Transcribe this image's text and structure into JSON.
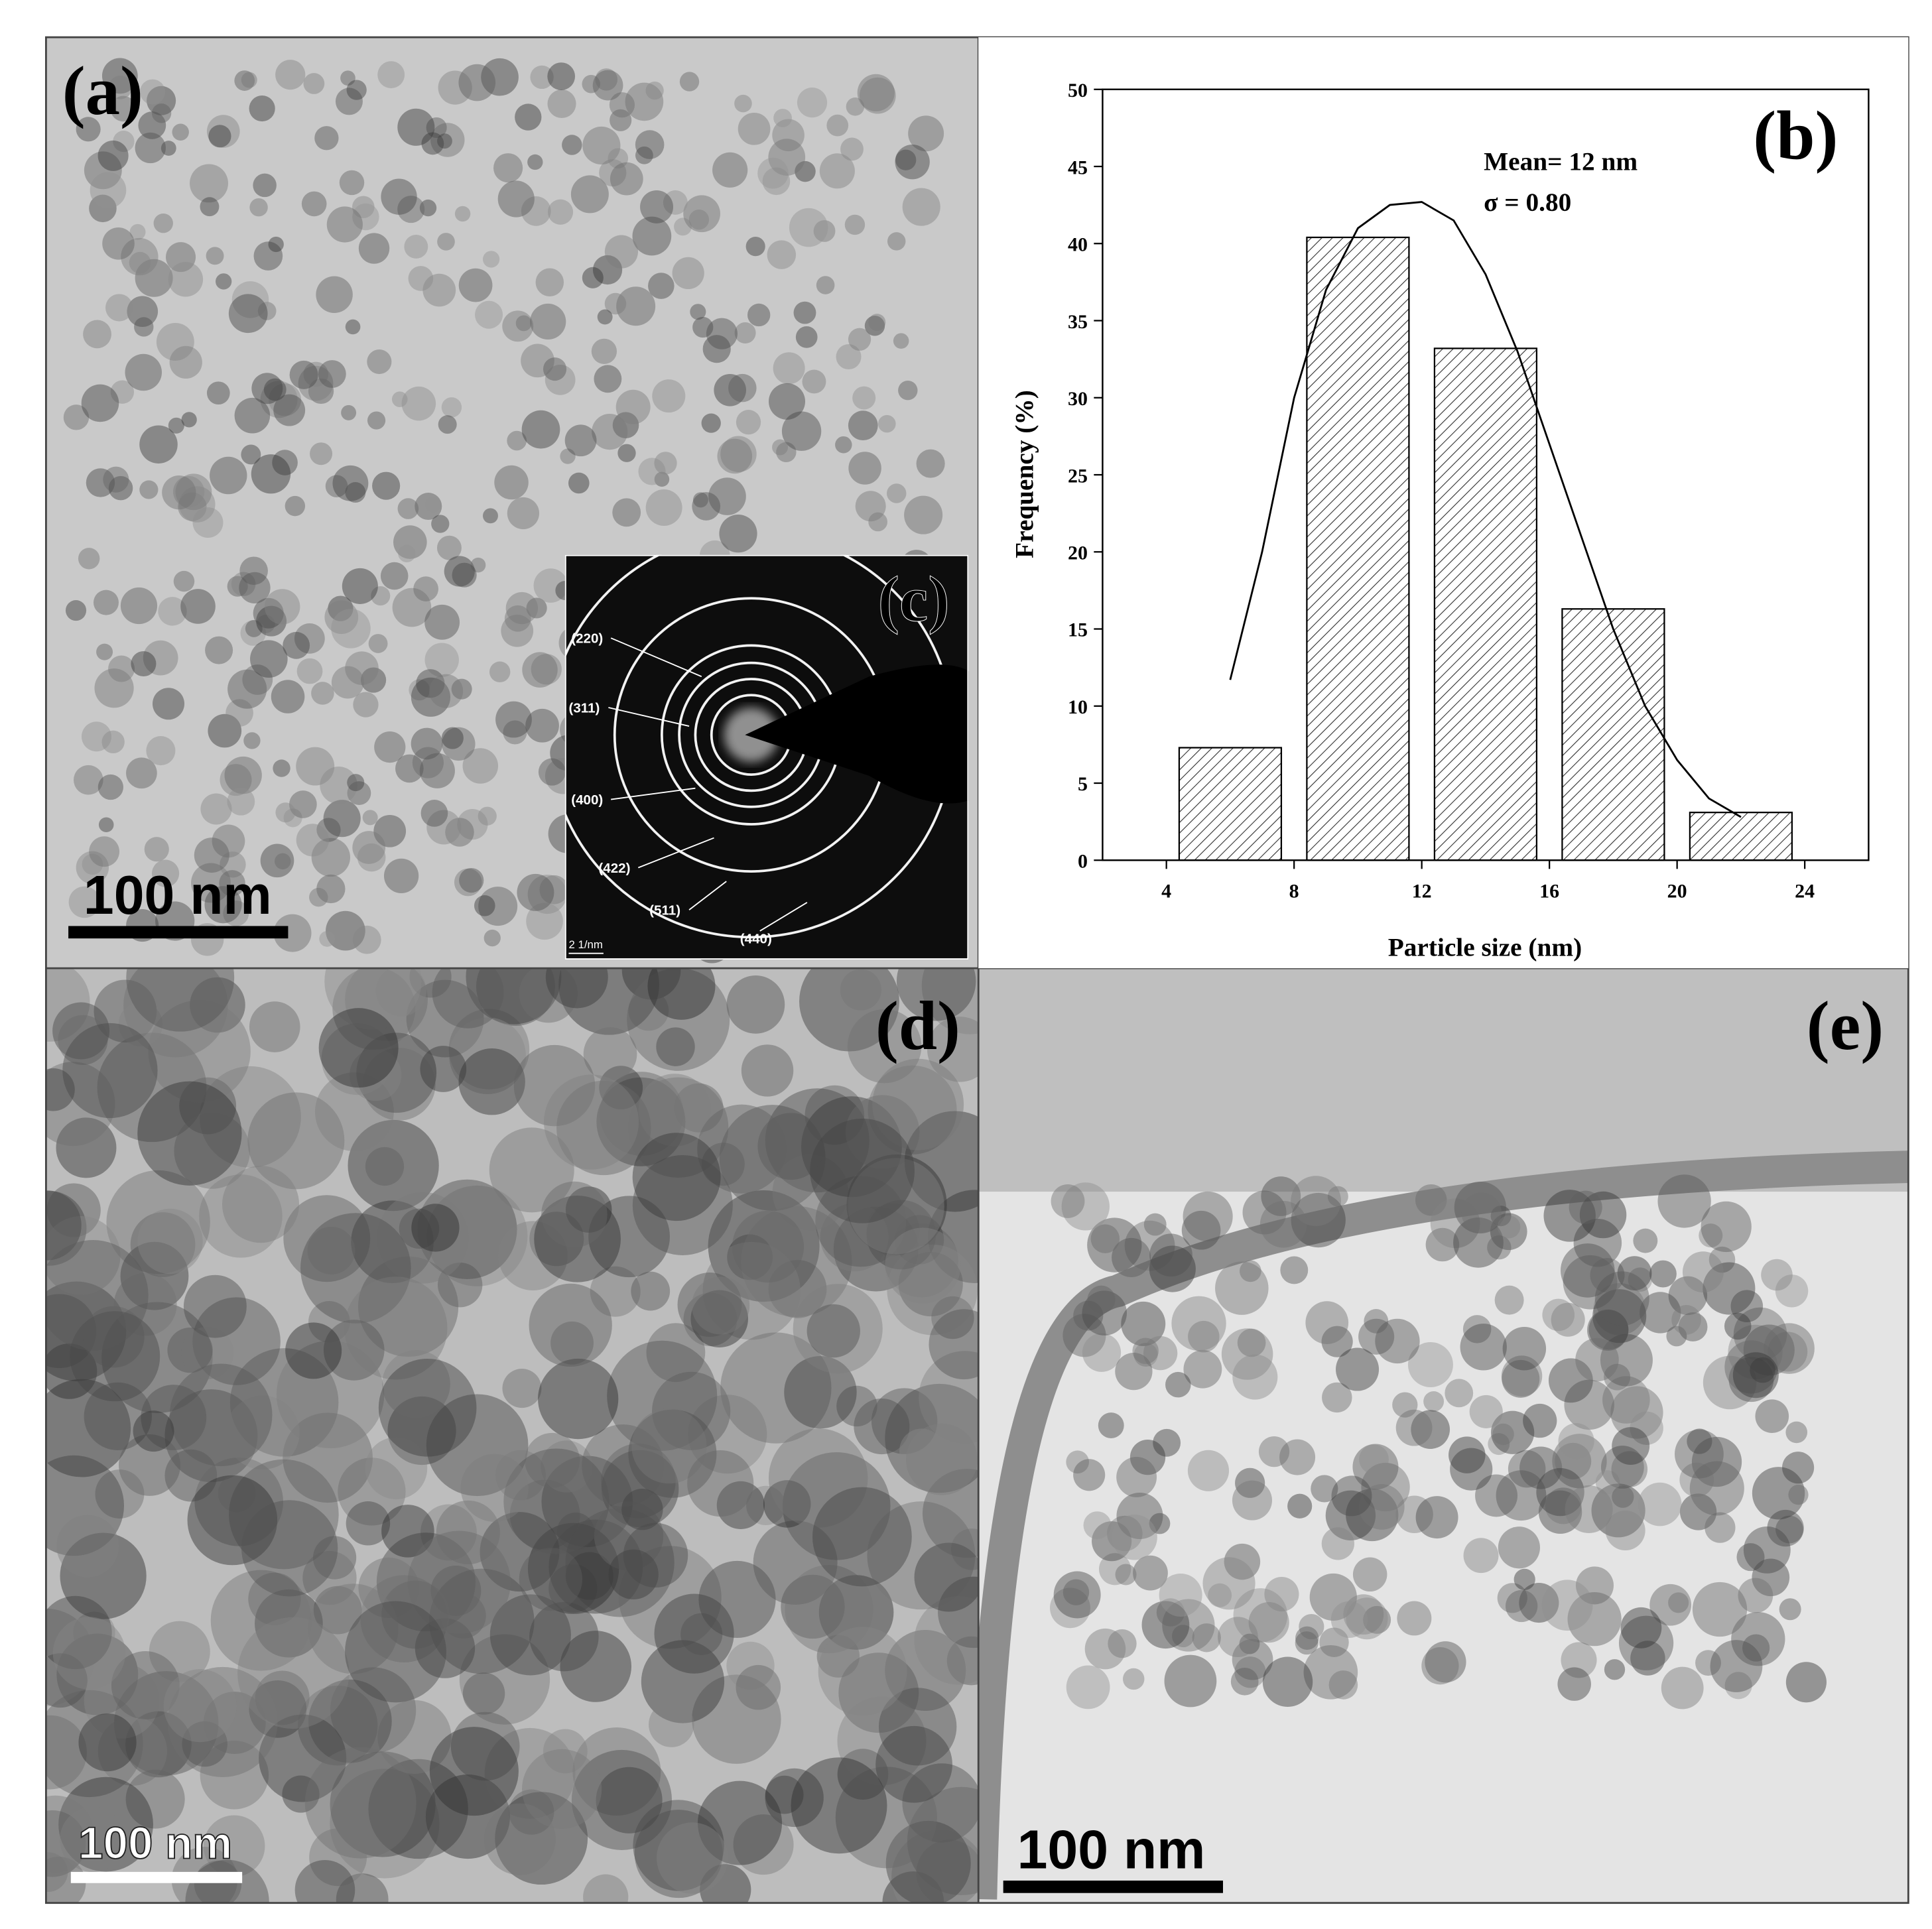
{
  "panels": {
    "a": {
      "label": "(a)",
      "scale_bar": "100 nm"
    },
    "c": {
      "label": "(c)",
      "rings": [
        "(220)",
        "(311)",
        "(400)",
        "(422)",
        "(511)",
        "(440)"
      ],
      "scale_bar": "2 1/nm"
    },
    "d": {
      "label": "(d)",
      "scale_bar": "100 nm"
    },
    "e": {
      "label": "(e)",
      "scale_bar": "100 nm"
    }
  },
  "chart_data": {
    "type": "histogram",
    "label": "(b)",
    "x_label": "Particle size (nm)",
    "y_label": "Frequency (%)",
    "annotations": [
      "Mean= 12 nm",
      "σ = 0.80"
    ],
    "bins": [
      4,
      8,
      12,
      16,
      20,
      24
    ],
    "values": [
      7.3,
      40.4,
      33.2,
      16.3,
      3.1
    ],
    "color": "#ffffff",
    "hatch": true,
    "fit": {
      "x": [
        6,
        7,
        8,
        9,
        10,
        11,
        12,
        13,
        14,
        15,
        16,
        17,
        18,
        19,
        20,
        21,
        22
      ],
      "values": [
        11.7,
        20,
        30,
        37,
        41,
        42.5,
        42.7,
        41.5,
        38,
        33,
        27,
        21,
        15,
        10,
        6.5,
        4,
        2.8
      ]
    },
    "xlim": [
      2,
      26
    ],
    "ylim": [
      0,
      50
    ],
    "xticks": [
      4,
      8,
      12,
      16,
      20,
      24
    ],
    "yticks": [
      0,
      5,
      10,
      15,
      20,
      25,
      30,
      35,
      40,
      45,
      50
    ]
  }
}
